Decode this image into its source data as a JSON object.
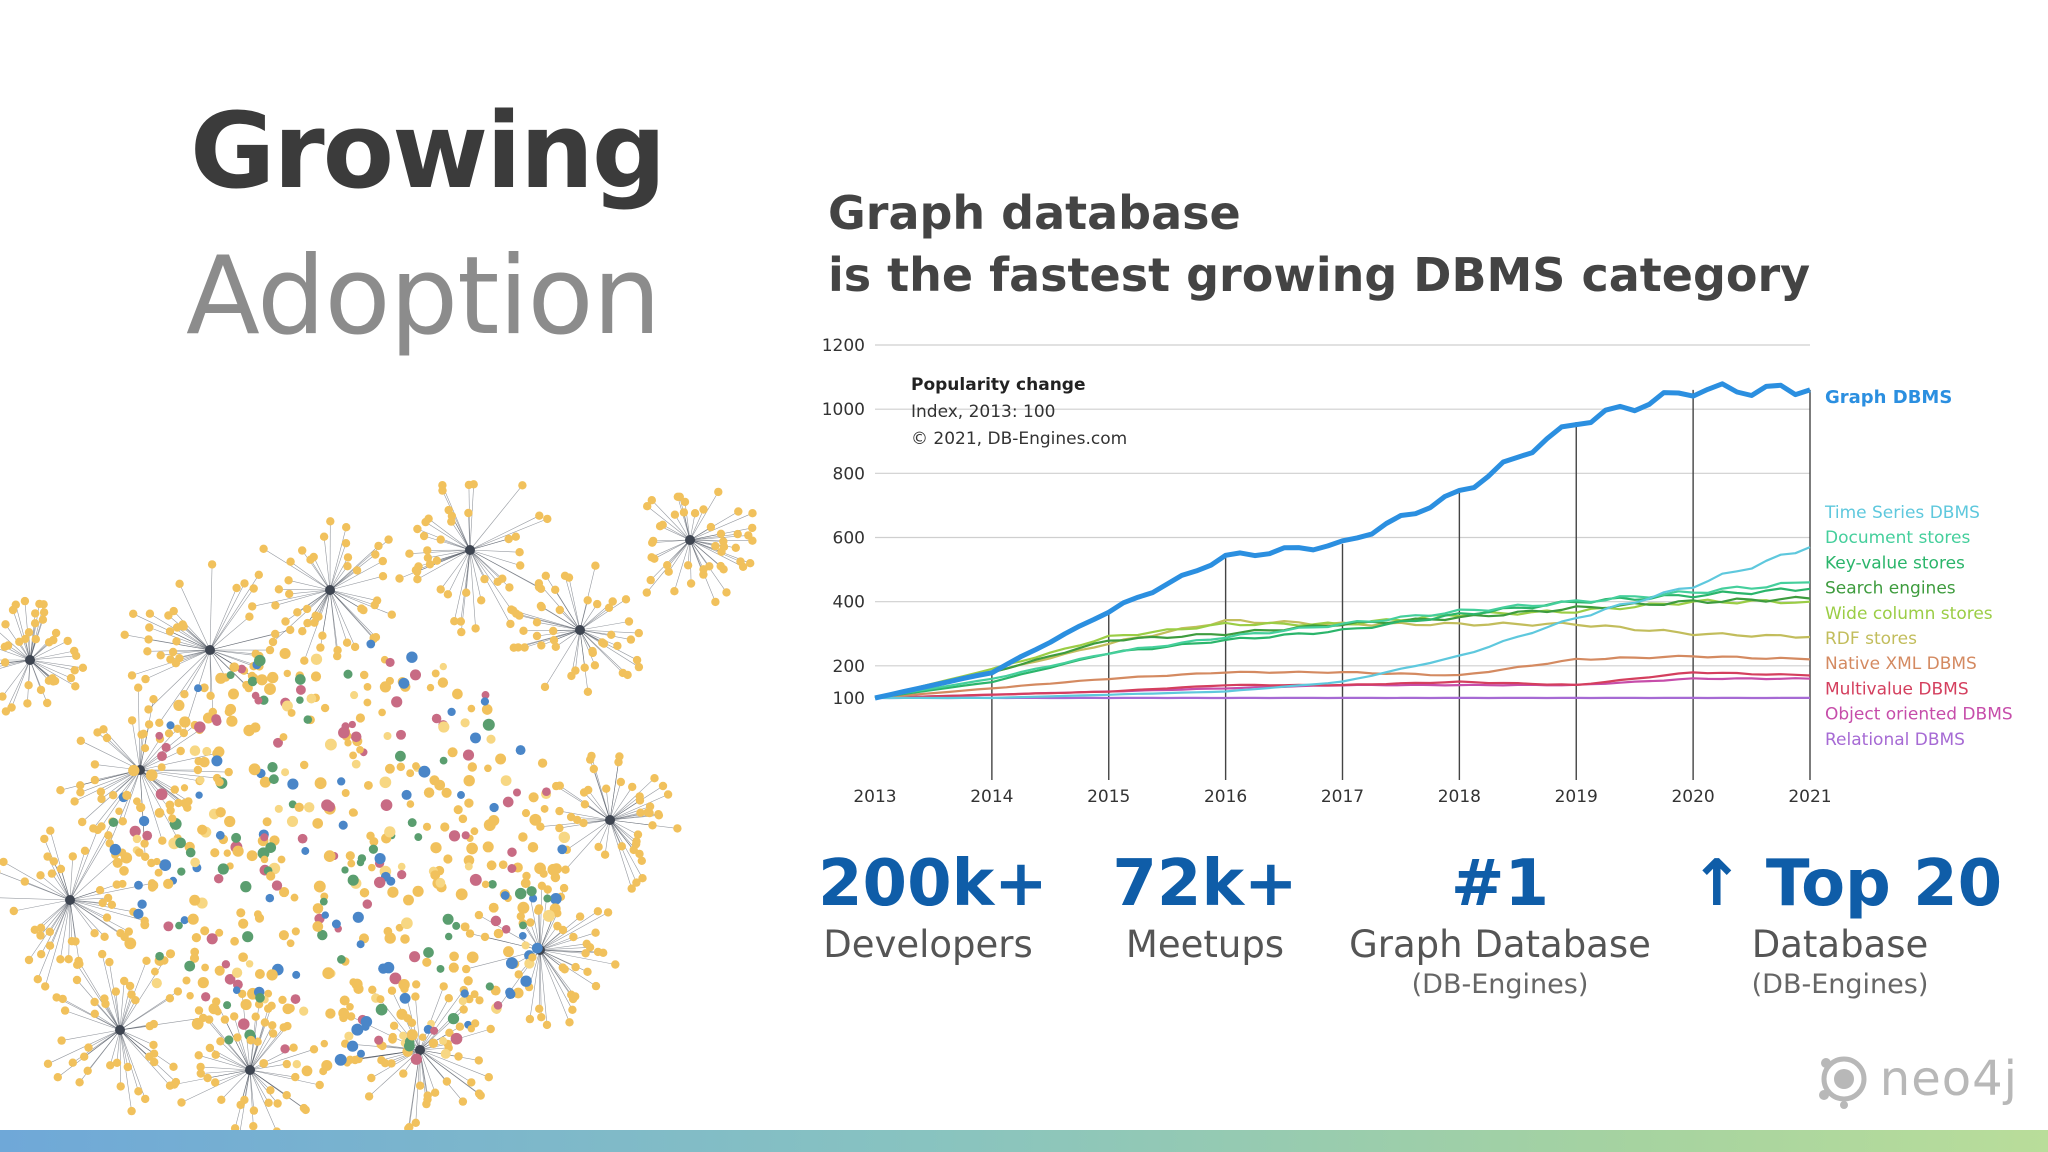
{
  "title": {
    "line1": "Growing",
    "line2": "Adoption"
  },
  "headline": {
    "line1": "Graph database",
    "line2": "is the fastest growing DBMS category"
  },
  "colors": {
    "title_dark": "#3b3b3b",
    "title_light": "#8c8c8c",
    "stat_blue": "#0f5da8",
    "graph_dbms": "#2b8fe0",
    "network_node": "#f1c15c",
    "network_edge": "#3d4450"
  },
  "chart_data": {
    "type": "line",
    "annotation": {
      "heading": "Popularity change",
      "line1": "Index, 2013: 100",
      "line2": "© 2021, DB-Engines.com"
    },
    "x_ticks": [
      "2013",
      "2014",
      "2015",
      "2016",
      "2017",
      "2018",
      "2019",
      "2020",
      "2021"
    ],
    "y_ticks": [
      "1200",
      "1000",
      "800",
      "600",
      "400",
      "200",
      "100"
    ],
    "xlim": [
      2013,
      2021
    ],
    "ylim": [
      0,
      1200
    ],
    "grid": "horizontal",
    "x": [
      2013,
      2014,
      2015,
      2016,
      2017,
      2018,
      2019,
      2020,
      2021
    ],
    "series": [
      {
        "name": "Graph DBMS",
        "color": "#2b8fe0",
        "values": [
          100,
          180,
          370,
          540,
          580,
          740,
          960,
          1060,
          1060
        ]
      },
      {
        "name": "Time Series DBMS",
        "color": "#5ec8dd",
        "values": [
          100,
          100,
          110,
          120,
          150,
          230,
          350,
          450,
          570
        ]
      },
      {
        "name": "Document stores",
        "color": "#45cf9c",
        "values": [
          100,
          160,
          240,
          290,
          330,
          370,
          400,
          430,
          460
        ]
      },
      {
        "name": "Key-value stores",
        "color": "#2bb56b",
        "values": [
          100,
          150,
          240,
          280,
          310,
          360,
          400,
          420,
          440
        ]
      },
      {
        "name": "Search engines",
        "color": "#3e9c3e",
        "values": [
          100,
          180,
          280,
          300,
          330,
          350,
          380,
          400,
          410
        ]
      },
      {
        "name": "Wide column stores",
        "color": "#9bcd45",
        "values": [
          100,
          190,
          290,
          330,
          330,
          360,
          370,
          400,
          400
        ]
      },
      {
        "name": "RDF stores",
        "color": "#c2bd5c",
        "values": [
          100,
          180,
          270,
          340,
          330,
          330,
          330,
          300,
          290
        ]
      },
      {
        "name": "Native XML DBMS",
        "color": "#d48a61",
        "values": [
          100,
          130,
          160,
          180,
          180,
          170,
          220,
          230,
          220
        ]
      },
      {
        "name": "Multivalue DBMS",
        "color": "#d43f5e",
        "values": [
          100,
          110,
          120,
          140,
          140,
          150,
          140,
          180,
          170
        ]
      },
      {
        "name": "Object oriented DBMS",
        "color": "#c64daa",
        "values": [
          100,
          110,
          120,
          130,
          140,
          140,
          140,
          160,
          160
        ]
      },
      {
        "name": "Relational DBMS",
        "color": "#a66ad4",
        "values": [
          100,
          100,
          100,
          100,
          100,
          100,
          100,
          100,
          100
        ]
      }
    ]
  },
  "stats": [
    {
      "value": "200k+",
      "label": "Developers",
      "source": ""
    },
    {
      "value": "72k+",
      "label": "Meetups",
      "source": ""
    },
    {
      "value": "#1",
      "label": "Graph Database",
      "source": "(DB-Engines)"
    },
    {
      "value": "↑ Top 20",
      "label": "Database",
      "source": "(DB-Engines)"
    }
  ],
  "logo": {
    "text": "neo4j"
  }
}
